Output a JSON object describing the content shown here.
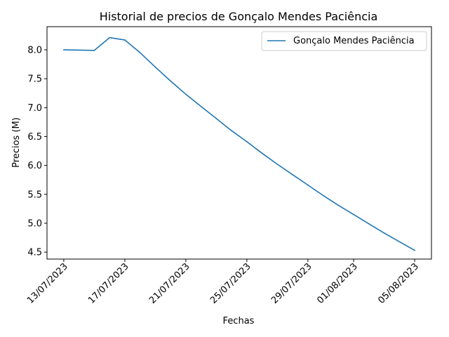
{
  "chart_data": {
    "type": "line",
    "title": "Historial de precios de Gonçalo Mendes Paciência",
    "xlabel": "Fechas",
    "ylabel": "Precios (M)",
    "x_ticks": [
      "13/07/2023",
      "17/07/2023",
      "21/07/2023",
      "25/07/2023",
      "29/07/2023",
      "01/08/2023",
      "05/08/2023"
    ],
    "x_tick_days": [
      0,
      4,
      8,
      12,
      16,
      19,
      23
    ],
    "y_ticks": [
      "4.5",
      "5.0",
      "5.5",
      "6.0",
      "6.5",
      "7.0",
      "7.5",
      "8.0"
    ],
    "xlim": [
      -1.1,
      24.1
    ],
    "ylim": [
      4.38,
      8.4
    ],
    "grid": false,
    "legend_position": "top-right",
    "series": [
      {
        "name": "Gonçalo Mendes Paciência",
        "color": "#1f77b4",
        "x": [
          "13/07/2023",
          "15/07/2023",
          "16/07/2023",
          "17/07/2023",
          "18/07/2023",
          "19/07/2023",
          "20/07/2023",
          "21/07/2023",
          "22/07/2023",
          "23/07/2023",
          "24/07/2023",
          "25/07/2023",
          "26/07/2023",
          "27/07/2023",
          "28/07/2023",
          "29/07/2023",
          "30/07/2023",
          "31/07/2023",
          "01/08/2023",
          "02/08/2023",
          "03/08/2023",
          "04/08/2023",
          "05/08/2023"
        ],
        "values": [
          8.0,
          7.99,
          8.21,
          8.17,
          7.95,
          7.7,
          7.46,
          7.23,
          7.02,
          6.81,
          6.6,
          6.41,
          6.21,
          6.02,
          5.84,
          5.66,
          5.48,
          5.31,
          5.15,
          4.99,
          4.83,
          4.68,
          4.53
        ]
      }
    ]
  }
}
